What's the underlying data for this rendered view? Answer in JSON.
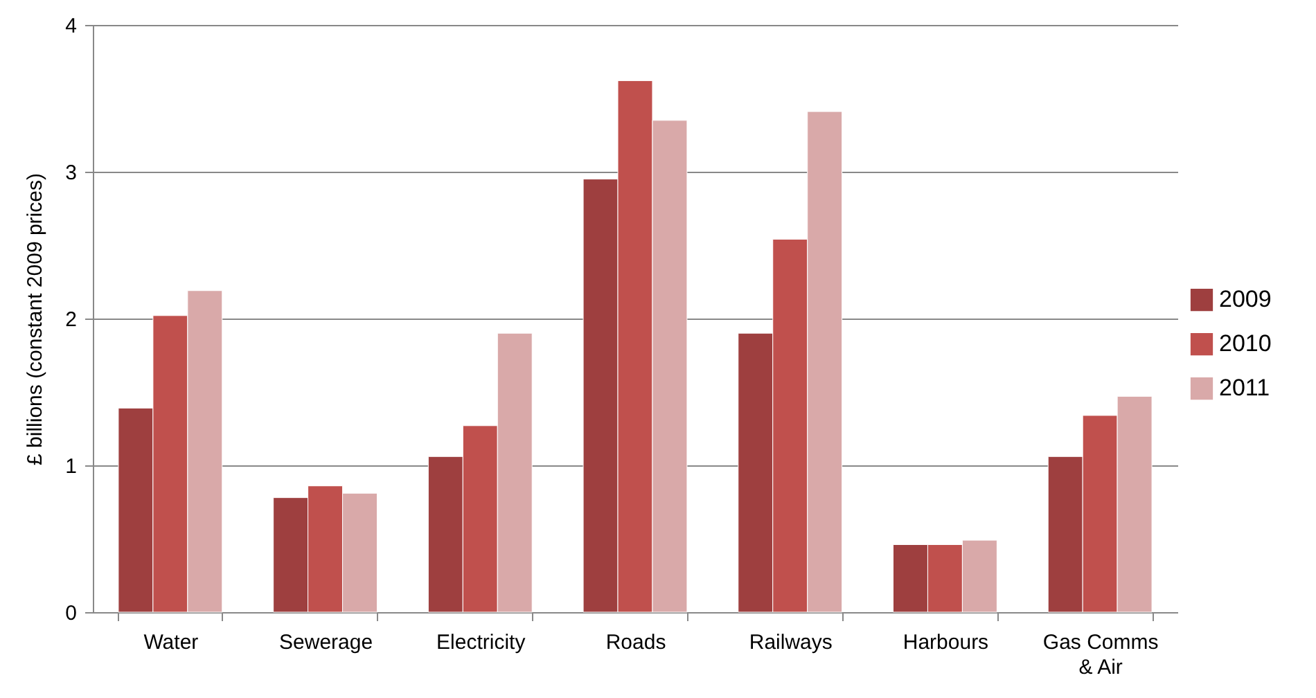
{
  "chart_data": {
    "type": "bar",
    "ylabel": "£ billions (constant 2009 prices)",
    "categories": [
      "Water",
      "Sewerage",
      "Electricity",
      "Roads",
      "Railways",
      "Harbours",
      "Gas Comms & Air"
    ],
    "series": [
      {
        "name": "2009",
        "color": "#9e3f3f",
        "values": [
          1.39,
          0.78,
          1.06,
          2.95,
          1.9,
          0.46,
          1.06
        ]
      },
      {
        "name": "2010",
        "color": "#c0504d",
        "values": [
          2.02,
          0.86,
          1.27,
          3.62,
          2.54,
          0.46,
          1.34
        ]
      },
      {
        "name": "2011",
        "color": "#d9a9a9",
        "values": [
          2.19,
          0.81,
          1.9,
          3.35,
          3.41,
          0.49,
          1.47
        ]
      }
    ],
    "ylim": [
      0,
      4
    ],
    "yticks": [
      0,
      1,
      2,
      3,
      4
    ],
    "grid": "y",
    "legend": "right"
  }
}
